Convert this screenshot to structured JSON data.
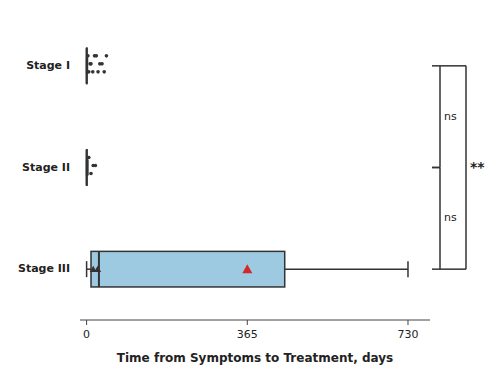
{
  "chart_data": {
    "type": "box",
    "orientation": "horizontal",
    "xlabel": "Time from Symptoms to Treatment, days",
    "categories": [
      "Stage I",
      "Stage II",
      "Stage III"
    ],
    "xlim": [
      -15,
      780
    ],
    "xticks": [
      0,
      365,
      730
    ],
    "grid": false,
    "color": "#ffffff",
    "boxes": [
      {
        "q1": 0,
        "median": 0,
        "q3": 1,
        "whisker_min": 0,
        "whisker_max": 2,
        "outliers": [
          3,
          5,
          8,
          10,
          14,
          18,
          22,
          26,
          30,
          35,
          40,
          45
        ],
        "marker": "circle"
      },
      {
        "q1": 0,
        "median": 0,
        "q3": 1,
        "whisker_min": 0,
        "whisker_max": 3,
        "outliers": [
          5,
          10,
          15,
          20
        ],
        "marker": "circle"
      },
      {
        "q1": 10,
        "median": 28,
        "q3": 450,
        "whisker_min": 0,
        "whisker_max": 730,
        "mean": 365,
        "outliers": [
          15,
          25
        ],
        "marker": "triangle"
      }
    ],
    "annotations": [
      {
        "text": "ns",
        "between": [
          "Stage I",
          "Stage II"
        ]
      },
      {
        "text": "ns",
        "between": [
          "Stage II",
          "Stage III"
        ]
      },
      {
        "text": "**",
        "between": [
          "Stage I",
          "Stage III"
        ]
      }
    ]
  }
}
